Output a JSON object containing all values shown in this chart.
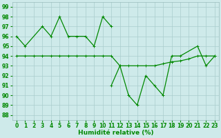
{
  "x_line1": [
    0,
    1,
    3,
    4,
    5,
    6,
    7,
    8,
    9,
    10,
    11
  ],
  "y_line1": [
    96,
    95,
    97,
    96,
    98,
    96,
    96,
    96,
    95,
    98,
    97
  ],
  "x_line2": [
    11,
    12,
    13,
    14,
    15,
    16,
    17,
    18,
    19,
    21,
    22,
    23
  ],
  "y_line2": [
    91,
    93,
    90,
    89,
    92,
    91,
    90,
    94,
    94,
    95,
    93,
    94
  ],
  "x_trend": [
    0,
    1,
    2,
    3,
    4,
    5,
    6,
    7,
    8,
    9,
    10,
    11,
    12,
    13,
    14,
    15,
    16,
    17,
    18,
    19,
    20,
    21,
    22,
    23
  ],
  "y_trend": [
    94,
    94,
    94,
    94,
    94,
    94,
    94,
    94,
    94,
    94,
    94,
    94,
    93,
    93,
    93,
    93,
    93,
    93.2,
    93.4,
    93.5,
    93.7,
    94,
    94,
    94
  ],
  "background_color": "#ceeaea",
  "grid_color": "#aacccc",
  "line_color": "#008800",
  "marker_color": "#008800",
  "ylim_min": 87.5,
  "ylim_max": 99.5,
  "xlim_min": -0.5,
  "xlim_max": 23.5,
  "yticks": [
    88,
    89,
    90,
    91,
    92,
    93,
    94,
    95,
    96,
    97,
    98,
    99
  ],
  "xticks": [
    0,
    1,
    2,
    3,
    4,
    5,
    6,
    7,
    8,
    9,
    10,
    11,
    12,
    13,
    14,
    15,
    16,
    17,
    18,
    19,
    20,
    21,
    22,
    23
  ],
  "xlabel": "Humidité relative (%)",
  "tick_fontsize": 5.5,
  "xlabel_fontsize": 6.5
}
